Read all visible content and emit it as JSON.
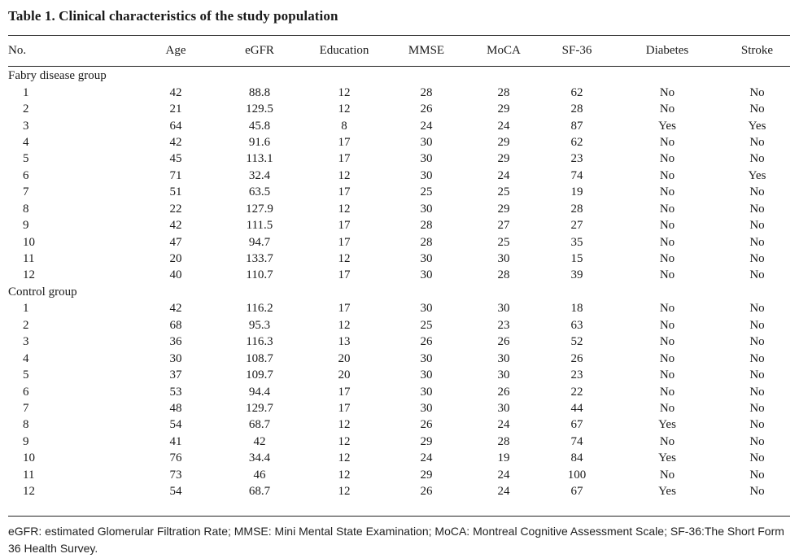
{
  "title": "Table 1. Clinical characteristics of the study population",
  "columns": [
    "No.",
    "Age",
    "eGFR",
    "Education",
    "MMSE",
    "MoCA",
    "SF-36",
    "Diabetes",
    "Stroke"
  ],
  "groups": [
    {
      "label": "Fabry disease group",
      "rows": [
        [
          "1",
          "42",
          "88.8",
          "12",
          "28",
          "28",
          "62",
          "No",
          "No"
        ],
        [
          "2",
          "21",
          "129.5",
          "12",
          "26",
          "29",
          "28",
          "No",
          "No"
        ],
        [
          "3",
          "64",
          "45.8",
          "8",
          "24",
          "24",
          "87",
          "Yes",
          "Yes"
        ],
        [
          "4",
          "42",
          "91.6",
          "17",
          "30",
          "29",
          "62",
          "No",
          "No"
        ],
        [
          "5",
          "45",
          "113.1",
          "17",
          "30",
          "29",
          "23",
          "No",
          "No"
        ],
        [
          "6",
          "71",
          "32.4",
          "12",
          "30",
          "24",
          "74",
          "No",
          "Yes"
        ],
        [
          "7",
          "51",
          "63.5",
          "17",
          "25",
          "25",
          "19",
          "No",
          "No"
        ],
        [
          "8",
          "22",
          "127.9",
          "12",
          "30",
          "29",
          "28",
          "No",
          "No"
        ],
        [
          "9",
          "42",
          "111.5",
          "17",
          "28",
          "27",
          "27",
          "No",
          "No"
        ],
        [
          "10",
          "47",
          "94.7",
          "17",
          "28",
          "25",
          "35",
          "No",
          "No"
        ],
        [
          "11",
          "20",
          "133.7",
          "12",
          "30",
          "30",
          "15",
          "No",
          "No"
        ],
        [
          "12",
          "40",
          "110.7",
          "17",
          "30",
          "28",
          "39",
          "No",
          "No"
        ]
      ]
    },
    {
      "label": "Control group",
      "rows": [
        [
          "1",
          "42",
          "116.2",
          "17",
          "30",
          "30",
          "18",
          "No",
          "No"
        ],
        [
          "2",
          "68",
          "95.3",
          "12",
          "25",
          "23",
          "63",
          "No",
          "No"
        ],
        [
          "3",
          "36",
          "116.3",
          "13",
          "26",
          "26",
          "52",
          "No",
          "No"
        ],
        [
          "4",
          "30",
          "108.7",
          "20",
          "30",
          "30",
          "26",
          "No",
          "No"
        ],
        [
          "5",
          "37",
          "109.7",
          "20",
          "30",
          "30",
          "23",
          "No",
          "No"
        ],
        [
          "6",
          "53",
          "94.4",
          "17",
          "30",
          "26",
          "22",
          "No",
          "No"
        ],
        [
          "7",
          "48",
          "129.7",
          "17",
          "30",
          "30",
          "44",
          "No",
          "No"
        ],
        [
          "8",
          "54",
          "68.7",
          "12",
          "26",
          "24",
          "67",
          "Yes",
          "No"
        ],
        [
          "9",
          "41",
          "42",
          "12",
          "29",
          "28",
          "74",
          "No",
          "No"
        ],
        [
          "10",
          "76",
          "34.4",
          "12",
          "24",
          "19",
          "84",
          "Yes",
          "No"
        ],
        [
          "11",
          "73",
          "46",
          "12",
          "29",
          "24",
          "100",
          "No",
          "No"
        ],
        [
          "12",
          "54",
          "68.7",
          "12",
          "26",
          "24",
          "67",
          "Yes",
          "No"
        ]
      ]
    }
  ],
  "footnote": "eGFR: estimated Glomerular Filtration Rate; MMSE: Mini Mental State Examination; MoCA: Montreal Cognitive Assessment Scale; SF-36:The Short Form 36 Health Survey."
}
